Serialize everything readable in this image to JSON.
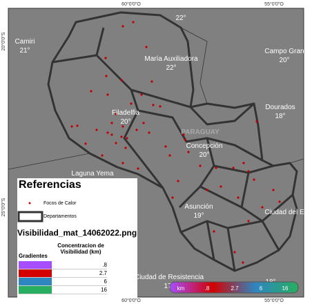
{
  "coordinates": {
    "top": [
      "60°0'0\"O",
      "55°0'0\"O"
    ],
    "bottom": [
      "60°0'0\"O",
      "55°0'0\"O"
    ],
    "left": [
      "20°0'0\"S",
      "25°0'0\"S"
    ]
  },
  "places": [
    {
      "name": "Camiri",
      "temp": "21°"
    },
    {
      "temp": "22°"
    },
    {
      "name": "María Auxiliadora",
      "temp": "22°"
    },
    {
      "name": "Campo Gran",
      "temp": "20°"
    },
    {
      "name": "Filadelfia",
      "temp": "20°"
    },
    {
      "name": "Dourados",
      "temp": "18°"
    },
    {
      "name": "Concepción",
      "temp": "20°"
    },
    {
      "name": "Laguna Yema"
    },
    {
      "name": "Asunción",
      "temp": "19°"
    },
    {
      "name": "Ciudad del E"
    },
    {
      "name": "Ciudad de Resistencia",
      "temp": "17°"
    },
    {
      "temp": "18°"
    }
  ],
  "country": "PARAGUAY",
  "legend": {
    "title": "Referencias",
    "items": [
      "Focos de Calor",
      "Departamentos"
    ],
    "layer": "Visibilidad_mat_14062022.png",
    "table": {
      "headers": [
        "Gradientes",
        "Concentracion de Visibilidad (km)"
      ],
      "rows": [
        {
          "color": "#a64dff",
          "value": {
            "value": 0.8,
            "label": ".8"
          }
        },
        {
          "color": "#d40000",
          "value": 2.7
        },
        {
          "color": "#2e86c1",
          "value": 6
        },
        {
          "color": "#27ae60",
          "value": 16
        }
      ]
    }
  },
  "colorbar": {
    "unit": "km",
    "labels": [
      ".8",
      "2.7",
      "6",
      "16"
    ]
  }
}
